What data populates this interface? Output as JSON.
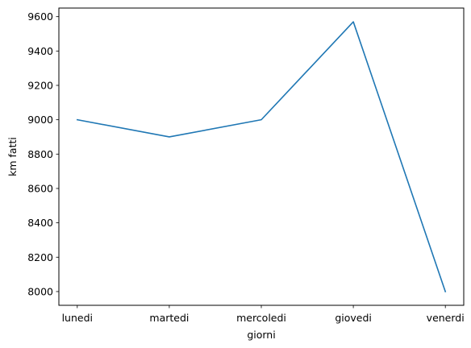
{
  "chart_data": {
    "type": "line",
    "categories": [
      "lunedi",
      "martedi",
      "mercoledi",
      "giovedi",
      "venerdi"
    ],
    "series": [
      {
        "values": [
          9000,
          8900,
          9000,
          9570,
          8000
        ],
        "color": "#1f77b4"
      }
    ],
    "title": "",
    "xlabel": "giorni",
    "ylabel": "km fatti",
    "ylim": [
      7920,
      9650
    ],
    "yticks": [
      8000,
      8200,
      8400,
      8600,
      8800,
      9000,
      9200,
      9400,
      9600
    ],
    "grid": false
  }
}
